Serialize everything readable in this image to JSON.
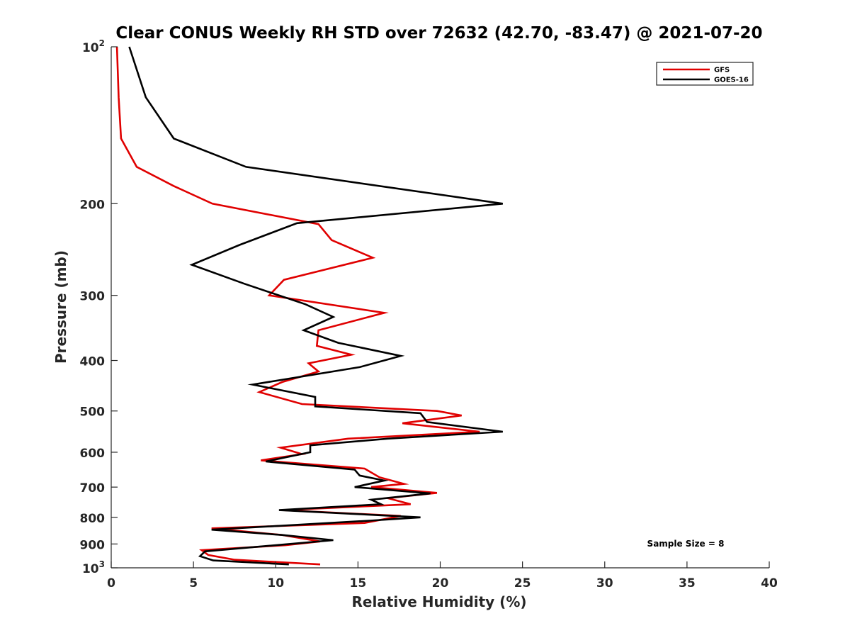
{
  "chart_data": {
    "type": "line",
    "title": "Clear CONUS Weekly RH STD over 72632 (42.70, -83.47) @ 2021-07-20",
    "xlabel": "Relative Humidity (%)",
    "ylabel": "Pressure (mb)",
    "xlim": [
      0,
      40
    ],
    "ylim": [
      1000,
      100
    ],
    "y_scale": "log",
    "y_reversed": true,
    "grid": false,
    "legend_position": "top-right",
    "x_ticks": [
      "0",
      "5",
      "10",
      "15",
      "20",
      "25",
      "30",
      "35",
      "40"
    ],
    "y_ticks": [
      {
        "value": 100,
        "base": "10",
        "exp": "2"
      },
      {
        "value": 200,
        "base": "200",
        "exp": ""
      },
      {
        "value": 300,
        "base": "300",
        "exp": ""
      },
      {
        "value": 400,
        "base": "400",
        "exp": ""
      },
      {
        "value": 500,
        "base": "500",
        "exp": ""
      },
      {
        "value": 600,
        "base": "600",
        "exp": ""
      },
      {
        "value": 700,
        "base": "700",
        "exp": ""
      },
      {
        "value": 800,
        "base": "800",
        "exp": ""
      },
      {
        "value": 900,
        "base": "900",
        "exp": ""
      },
      {
        "value": 1000,
        "base": "10",
        "exp": "3"
      }
    ],
    "series": [
      {
        "name": "GFS",
        "color": "#e00000",
        "points": [
          [
            0.35,
            100
          ],
          [
            0.45,
            125
          ],
          [
            0.6,
            150
          ],
          [
            1.55,
            170
          ],
          [
            3.8,
            185
          ],
          [
            6.15,
            200
          ],
          [
            12.6,
            219
          ],
          [
            13.4,
            235
          ],
          [
            15.9,
            254
          ],
          [
            10.5,
            280
          ],
          [
            9.6,
            300
          ],
          [
            16.6,
            324
          ],
          [
            12.6,
            350
          ],
          [
            12.5,
            375
          ],
          [
            14.6,
            390
          ],
          [
            12.0,
            405
          ],
          [
            12.6,
            420
          ],
          [
            10.4,
            440
          ],
          [
            9.0,
            460
          ],
          [
            11.6,
            485
          ],
          [
            19.8,
            500
          ],
          [
            21.3,
            510
          ],
          [
            17.7,
            528
          ],
          [
            22.4,
            548
          ],
          [
            14.4,
            565
          ],
          [
            10.3,
            588
          ],
          [
            11.6,
            605
          ],
          [
            9.1,
            622
          ],
          [
            15.4,
            645
          ],
          [
            16.3,
            670
          ],
          [
            17.8,
            690
          ],
          [
            15.8,
            700
          ],
          [
            19.8,
            718
          ],
          [
            16.8,
            735
          ],
          [
            18.2,
            755
          ],
          [
            10.4,
            775
          ],
          [
            17.6,
            795
          ],
          [
            15.4,
            820
          ],
          [
            6.1,
            840
          ],
          [
            10.4,
            865
          ],
          [
            12.7,
            890
          ],
          [
            10.6,
            905
          ],
          [
            5.5,
            925
          ],
          [
            5.9,
            945
          ],
          [
            7.5,
            965
          ],
          [
            12.7,
            985
          ]
        ]
      },
      {
        "name": "GOES-16",
        "color": "#000000",
        "points": [
          [
            1.1,
            100
          ],
          [
            2.1,
            125
          ],
          [
            3.8,
            150
          ],
          [
            8.2,
            170
          ],
          [
            23.8,
            200
          ],
          [
            11.3,
            218
          ],
          [
            7.8,
            240
          ],
          [
            4.9,
            262
          ],
          [
            8.1,
            285
          ],
          [
            11.8,
            312
          ],
          [
            13.5,
            330
          ],
          [
            11.7,
            350
          ],
          [
            13.8,
            370
          ],
          [
            17.6,
            392
          ],
          [
            15.1,
            412
          ],
          [
            8.6,
            445
          ],
          [
            12.4,
            470
          ],
          [
            12.4,
            490
          ],
          [
            18.8,
            505
          ],
          [
            19.2,
            525
          ],
          [
            23.8,
            548
          ],
          [
            16.8,
            565
          ],
          [
            12.1,
            582
          ],
          [
            12.1,
            600
          ],
          [
            9.4,
            625
          ],
          [
            14.8,
            648
          ],
          [
            15.1,
            665
          ],
          [
            16.6,
            680
          ],
          [
            14.8,
            700
          ],
          [
            19.4,
            720
          ],
          [
            15.8,
            740
          ],
          [
            16.4,
            755
          ],
          [
            10.2,
            775
          ],
          [
            15.5,
            790
          ],
          [
            18.8,
            800
          ],
          [
            15.7,
            812
          ],
          [
            6.1,
            845
          ],
          [
            10.4,
            865
          ],
          [
            13.5,
            885
          ],
          [
            5.7,
            930
          ],
          [
            5.4,
            950
          ],
          [
            6.2,
            968
          ],
          [
            10.8,
            985
          ]
        ]
      }
    ],
    "annotations": [
      {
        "text": "Sample Size = 8"
      }
    ]
  }
}
